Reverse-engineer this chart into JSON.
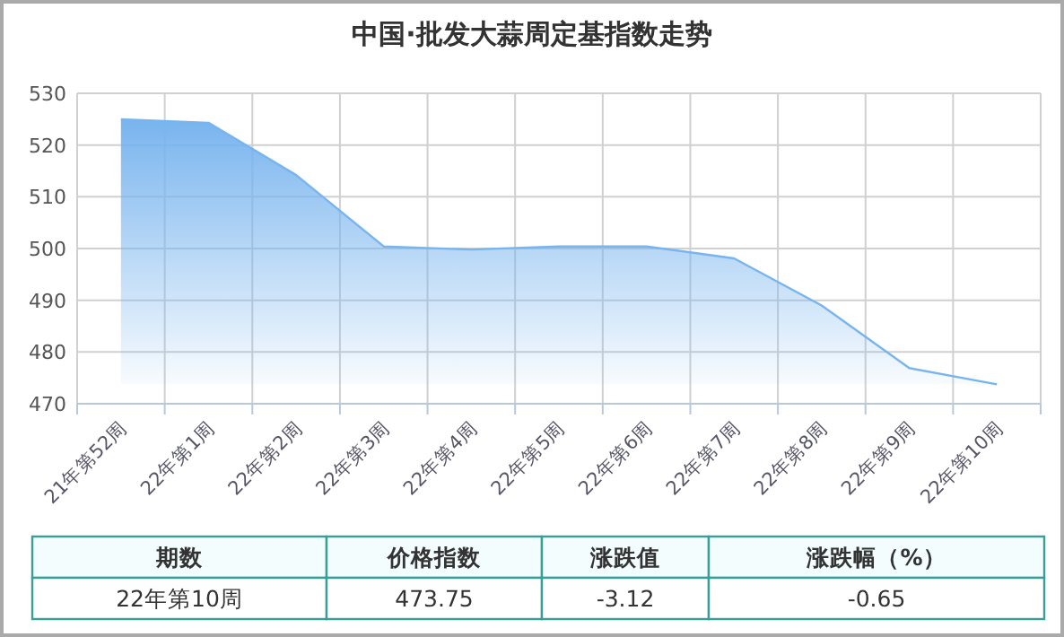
{
  "chart_data": {
    "type": "area",
    "title": "中国·批发大蒜周定基指数走势",
    "categories": [
      "21年第52周",
      "22年第1周",
      "22年第2周",
      "22年第3周",
      "22年第4周",
      "22年第5周",
      "22年第6周",
      "22年第7周",
      "22年第8周",
      "22年第9周",
      "22年第10周"
    ],
    "series": [
      {
        "color": "#78b4ee",
        "values": [
          525.0,
          524.3,
          514.2,
          500.4,
          499.8,
          500.4,
          500.4,
          498.1,
          489.0,
          476.9,
          473.75
        ]
      }
    ],
    "ylim": [
      470,
      530
    ],
    "yticks": [
      470,
      480,
      490,
      500,
      510,
      520,
      530
    ],
    "grid": true,
    "annotations": [
      "期数",
      "价格指数",
      "涨跌值",
      "涨跌幅（%）",
      "22年第10周",
      "473.75",
      "-3.12",
      "-0.65"
    ]
  }
}
